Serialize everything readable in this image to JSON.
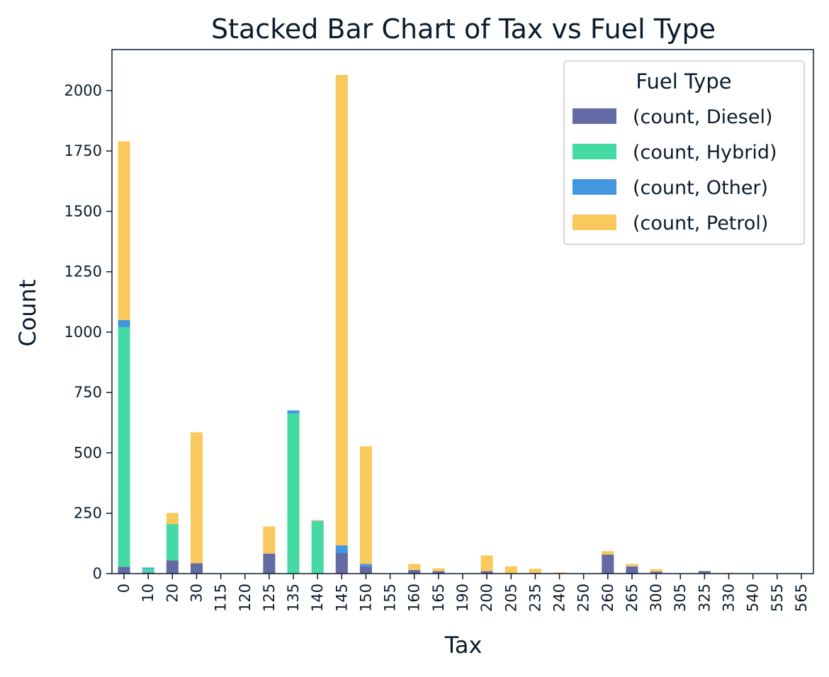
{
  "chart_data": {
    "type": "bar",
    "stacked": true,
    "title": "Stacked Bar Chart of Tax vs Fuel Type",
    "xlabel": "Tax",
    "ylabel": "Count",
    "ylim": [
      0,
      2170
    ],
    "yticks": [
      0,
      250,
      500,
      750,
      1000,
      1250,
      1500,
      1750,
      2000
    ],
    "grid": false,
    "legend_title": "Fuel Type",
    "legend_position": "top-right",
    "categories": [
      "0",
      "10",
      "20",
      "30",
      "115",
      "120",
      "125",
      "135",
      "140",
      "145",
      "150",
      "155",
      "160",
      "165",
      "190",
      "200",
      "205",
      "235",
      "240",
      "250",
      "260",
      "265",
      "300",
      "305",
      "325",
      "330",
      "540",
      "555",
      "565"
    ],
    "series": [
      {
        "name": "(count, Diesel)",
        "color": "#646aa3",
        "values": [
          28,
          5,
          55,
          43,
          0,
          0,
          83,
          0,
          0,
          85,
          30,
          0,
          15,
          10,
          0,
          10,
          2,
          3,
          0,
          0,
          79,
          30,
          8,
          0,
          10,
          0,
          0,
          0,
          0
        ]
      },
      {
        "name": "(count, Hybrid)",
        "color": "#45d9a4",
        "values": [
          992,
          15,
          150,
          0,
          0,
          0,
          0,
          663,
          216,
          0,
          0,
          0,
          0,
          0,
          0,
          0,
          0,
          0,
          0,
          0,
          0,
          0,
          0,
          0,
          0,
          0,
          0,
          0,
          0
        ]
      },
      {
        "name": "(count, Other)",
        "color": "#4297de",
        "values": [
          30,
          5,
          0,
          0,
          0,
          0,
          0,
          13,
          2,
          32,
          10,
          0,
          0,
          0,
          0,
          0,
          0,
          0,
          0,
          0,
          0,
          0,
          0,
          0,
          0,
          0,
          0,
          0,
          0
        ]
      },
      {
        "name": "(count, Petrol)",
        "color": "#f9c95d",
        "values": [
          740,
          0,
          46,
          542,
          0,
          0,
          112,
          0,
          4,
          1948,
          487,
          0,
          25,
          12,
          0,
          65,
          28,
          17,
          5,
          0,
          14,
          10,
          10,
          0,
          2,
          4,
          0,
          0,
          0
        ]
      }
    ]
  }
}
